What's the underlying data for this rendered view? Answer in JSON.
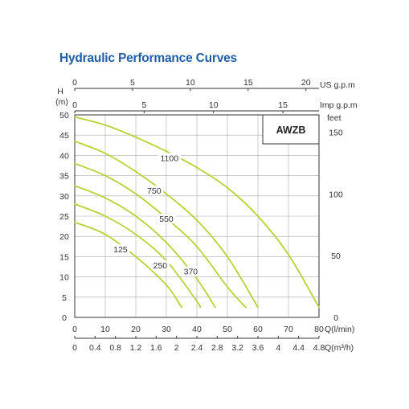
{
  "page": {
    "title": "Hydraulic Performance Curves"
  },
  "chart_data": {
    "type": "line",
    "title": "Hydraulic Performance Curves",
    "model_label": "AWZB",
    "colors": {
      "curve": "#b6d334",
      "grid": "#aaaaaa",
      "axis": "#333333",
      "title": "#1f5ea8"
    },
    "grid": true,
    "legend_position": "top-right",
    "y_left": {
      "label_line1": "H",
      "label_line2": "(m)",
      "lim": [
        0,
        50
      ],
      "ticks": [
        0,
        5,
        10,
        15,
        20,
        25,
        30,
        35,
        40,
        45,
        50
      ]
    },
    "y_right": {
      "label": "feet",
      "lim": [
        0,
        164.04
      ],
      "ticks": [
        0,
        50,
        100,
        150
      ]
    },
    "x_bottom": {
      "label": "Q(l/min)",
      "lim": [
        0,
        80
      ],
      "ticks": [
        0,
        10,
        20,
        30,
        40,
        50,
        60,
        70,
        80
      ]
    },
    "x_bottom2": {
      "label": "Q(m³/h)",
      "lim": [
        0,
        4.8
      ],
      "ticks": [
        "0",
        "0.4",
        "0.8",
        "1.2",
        "1.6",
        "2",
        "2.4",
        "2.8",
        "3.2",
        "3.6",
        "4",
        "4.4",
        "4.8"
      ]
    },
    "x_top1": {
      "label": "US g.p.m",
      "lim": [
        0,
        21.13
      ],
      "ticks": [
        0,
        5,
        10,
        15,
        20
      ]
    },
    "x_top2": {
      "label": "Imp g.p.m",
      "lim": [
        0,
        17.6
      ],
      "ticks": [
        0,
        5,
        10,
        15
      ]
    },
    "series": [
      {
        "name": "1100",
        "x": [
          0,
          10,
          20,
          30,
          40,
          50,
          60,
          70,
          80
        ],
        "y": [
          49.5,
          47.5,
          44.5,
          41,
          37,
          32,
          25,
          15.5,
          2.5
        ]
      },
      {
        "name": "750",
        "x": [
          0,
          10,
          20,
          30,
          40,
          50,
          60
        ],
        "y": [
          43.5,
          40.5,
          36,
          30.5,
          24,
          15,
          2.5
        ]
      },
      {
        "name": "550",
        "x": [
          0,
          10,
          20,
          30,
          40,
          50,
          56
        ],
        "y": [
          38,
          35,
          30.5,
          24.5,
          17.5,
          7.5,
          2.5
        ]
      },
      {
        "name": "370",
        "x": [
          0,
          10,
          20,
          30,
          40,
          46
        ],
        "y": [
          32.5,
          29.5,
          25,
          18.5,
          9.5,
          2.5
        ]
      },
      {
        "name": "250",
        "x": [
          0,
          10,
          20,
          30,
          40,
          41
        ],
        "y": [
          28,
          25,
          20.5,
          14,
          4,
          2.5
        ]
      },
      {
        "name": "125",
        "x": [
          0,
          10,
          20,
          30,
          35
        ],
        "y": [
          23.5,
          20.5,
          15,
          8,
          2.5
        ]
      }
    ],
    "curve_label_positions": [
      {
        "name": "1100",
        "x": 31,
        "y": 39
      },
      {
        "name": "750",
        "x": 26,
        "y": 31
      },
      {
        "name": "550",
        "x": 30,
        "y": 24
      },
      {
        "name": "370",
        "x": 38,
        "y": 11
      },
      {
        "name": "250",
        "x": 28,
        "y": 12.5
      },
      {
        "name": "125",
        "x": 15,
        "y": 16.5
      }
    ]
  }
}
